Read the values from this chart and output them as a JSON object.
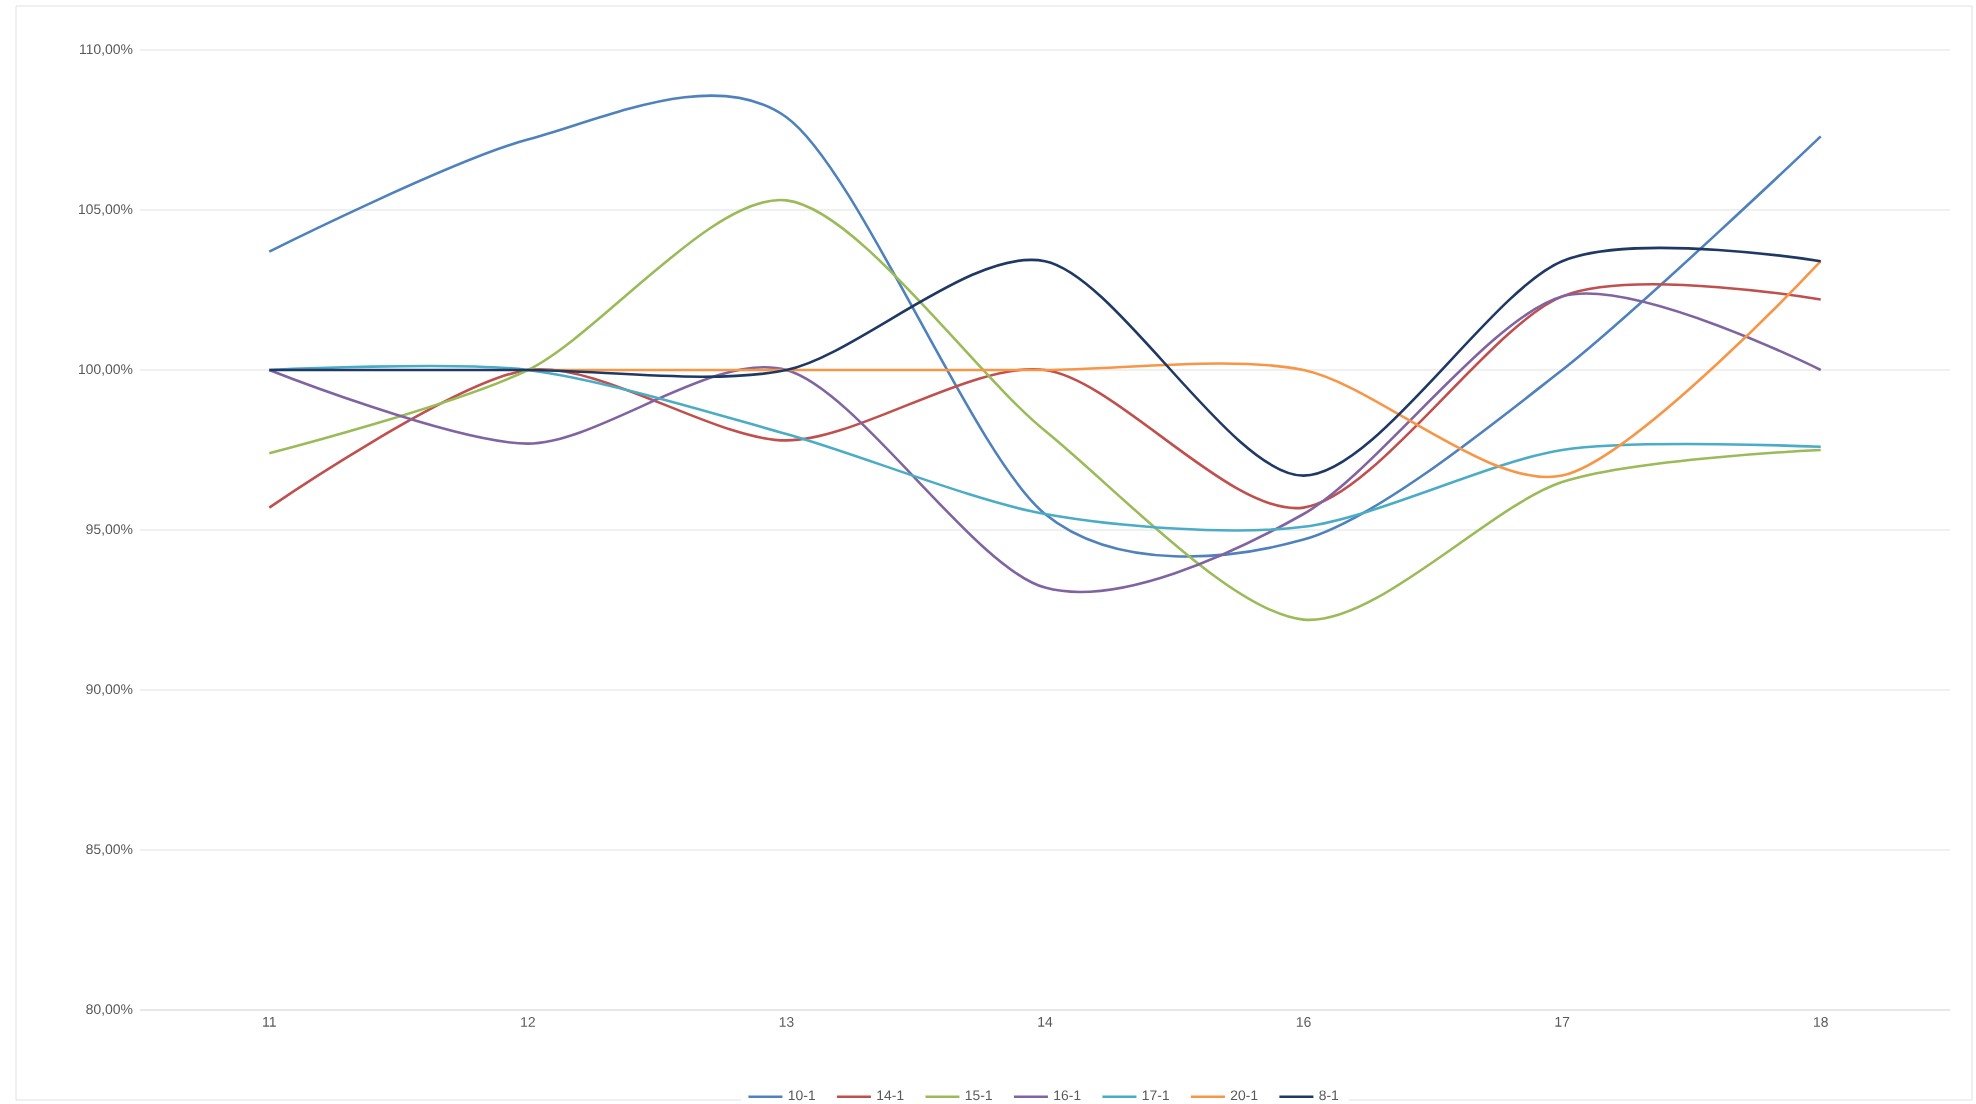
{
  "chart_data": {
    "type": "line",
    "categories": [
      "11",
      "12",
      "13",
      "14",
      "16",
      "17",
      "18"
    ],
    "series": [
      {
        "name": "10-1",
        "color": "#4f81bd",
        "values": [
          103.7,
          107.2,
          107.9,
          95.5,
          94.7,
          100.0,
          107.3
        ]
      },
      {
        "name": "14-1",
        "color": "#c0504d",
        "values": [
          95.7,
          100.0,
          97.8,
          100.0,
          95.7,
          102.3,
          102.2
        ]
      },
      {
        "name": "15-1",
        "color": "#9bbb59",
        "values": [
          97.4,
          100.0,
          105.3,
          98.1,
          92.2,
          96.5,
          97.5
        ]
      },
      {
        "name": "16-1",
        "color": "#8064a2",
        "values": [
          100.0,
          97.7,
          100.0,
          93.2,
          95.5,
          102.3,
          100.0
        ]
      },
      {
        "name": "17-1",
        "color": "#4bacc6",
        "values": [
          100.0,
          100.0,
          98.0,
          95.5,
          95.1,
          97.5,
          97.6
        ]
      },
      {
        "name": "20-1",
        "color": "#f79646",
        "values": [
          null,
          100.0,
          100.0,
          100.0,
          100.0,
          96.7,
          103.4
        ]
      },
      {
        "name": "8-1",
        "color": "#1f3864",
        "values": [
          100.0,
          100.0,
          100.0,
          103.4,
          96.7,
          103.4,
          103.4
        ]
      }
    ],
    "ylim": [
      80,
      110
    ],
    "yticks": [
      {
        "value": 80,
        "label": "80,00%"
      },
      {
        "value": 85,
        "label": "85,00%"
      },
      {
        "value": 90,
        "label": "90,00%"
      },
      {
        "value": 95,
        "label": "95,00%"
      },
      {
        "value": 100,
        "label": "100,00%"
      },
      {
        "value": 105,
        "label": "105,00%"
      },
      {
        "value": 110,
        "label": "110,00%"
      }
    ],
    "grid": "y",
    "legend": "bottom",
    "line_style": "solid"
  }
}
